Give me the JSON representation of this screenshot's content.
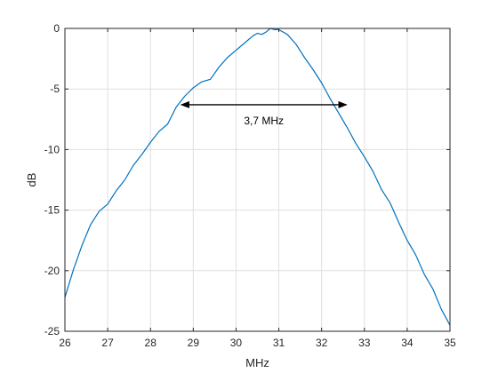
{
  "chart_data": {
    "type": "line",
    "xlabel": "MHz",
    "ylabel": "dB",
    "xlim": [
      26,
      35
    ],
    "ylim": [
      -25,
      0
    ],
    "x_ticks": [
      26,
      27,
      28,
      29,
      30,
      31,
      32,
      33,
      34,
      35
    ],
    "y_ticks": [
      0,
      -5,
      -10,
      -15,
      -20,
      -25
    ],
    "grid": true,
    "series": [
      {
        "color": "#0072bd",
        "x": [
          26.0,
          26.2,
          26.4,
          26.6,
          26.8,
          27.0,
          27.2,
          27.4,
          27.6,
          27.8,
          28.0,
          28.2,
          28.4,
          28.6,
          28.8,
          29.0,
          29.2,
          29.4,
          29.6,
          29.8,
          30.0,
          30.2,
          30.4,
          30.5,
          30.6,
          30.7,
          30.8,
          30.9,
          31.0,
          31.2,
          31.4,
          31.6,
          31.8,
          32.0,
          32.2,
          32.4,
          32.6,
          32.8,
          33.0,
          33.2,
          33.4,
          33.6,
          33.8,
          34.0,
          34.2,
          34.4,
          34.6,
          34.8,
          35.0
        ],
        "y": [
          -22.2,
          -19.9,
          -17.9,
          -16.2,
          -15.1,
          -14.5,
          -13.4,
          -12.5,
          -11.3,
          -10.4,
          -9.4,
          -8.5,
          -7.9,
          -6.5,
          -5.6,
          -4.9,
          -4.4,
          -4.2,
          -3.2,
          -2.4,
          -1.8,
          -1.2,
          -0.6,
          -0.4,
          -0.5,
          -0.3,
          0.0,
          -0.1,
          -0.1,
          -0.5,
          -1.3,
          -2.4,
          -3.4,
          -4.5,
          -5.8,
          -7.0,
          -8.2,
          -9.5,
          -10.6,
          -11.8,
          -13.3,
          -14.4,
          -16.0,
          -17.5,
          -18.7,
          -20.3,
          -21.5,
          -23.2,
          -24.5
        ]
      }
    ],
    "annotation": {
      "text": "3,7 MHz",
      "x_start": 28.7,
      "x_end": 32.6,
      "y": -6.3,
      "color": "#000000"
    }
  }
}
